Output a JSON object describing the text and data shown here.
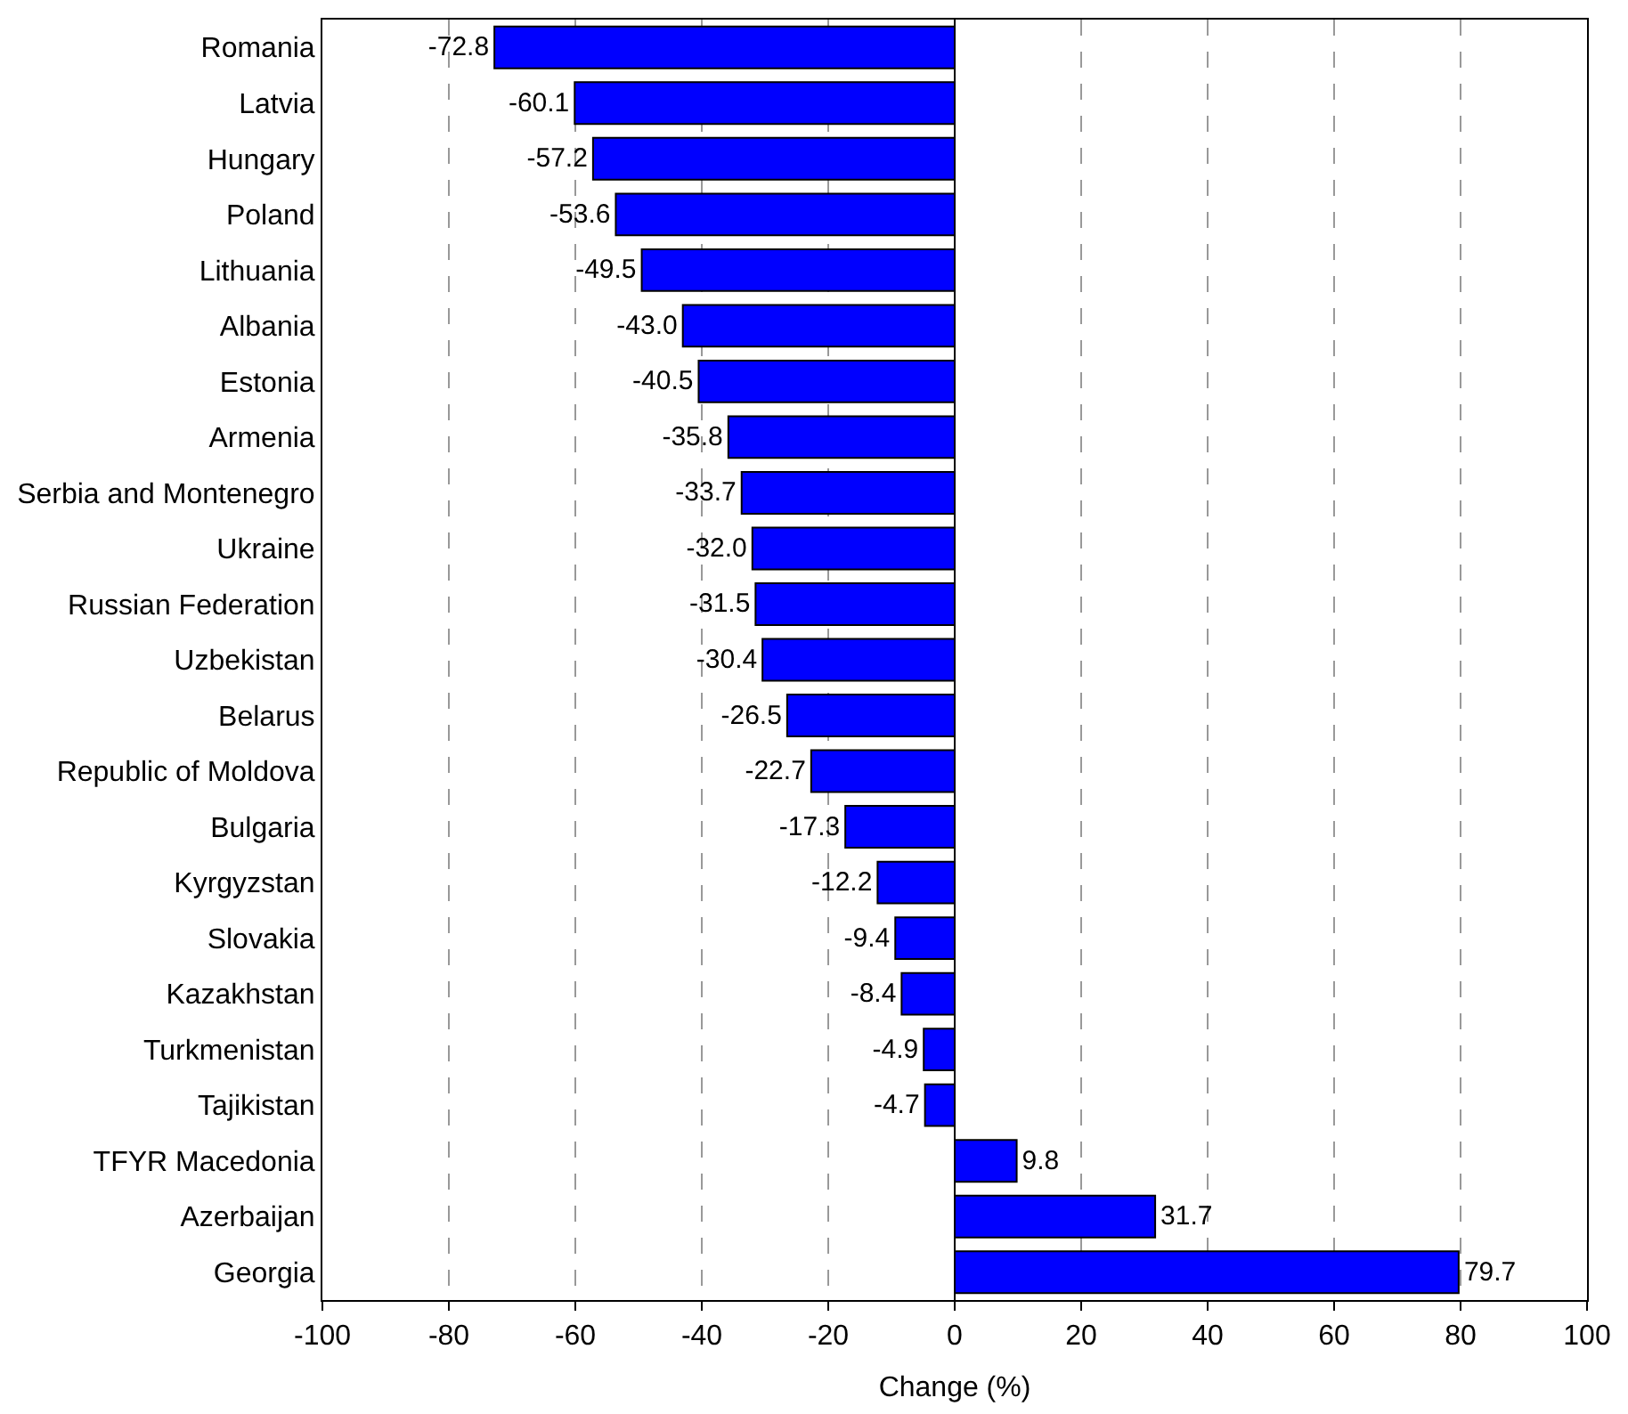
{
  "chart_data": {
    "type": "bar",
    "orientation": "horizontal",
    "xlabel": "Change (%)",
    "categories": [
      "Romania",
      "Latvia",
      "Hungary",
      "Poland",
      "Lithuania",
      "Albania",
      "Estonia",
      "Armenia",
      "Serbia and Montenegro",
      "Ukraine",
      "Russian Federation",
      "Uzbekistan",
      "Belarus",
      "Republic of Moldova",
      "Bulgaria",
      "Kyrgyzstan",
      "Slovakia",
      "Kazakhstan",
      "Turkmenistan",
      "Tajikistan",
      "TFYR Macedonia",
      "Azerbaijan",
      "Georgia"
    ],
    "values": [
      -72.8,
      -60.1,
      -57.2,
      -53.6,
      -49.5,
      -43.0,
      -40.5,
      -35.8,
      -33.7,
      -32.0,
      -31.5,
      -30.4,
      -26.5,
      -22.7,
      -17.3,
      -12.2,
      -9.4,
      -8.4,
      -4.9,
      -4.7,
      9.8,
      31.7,
      79.7
    ],
    "value_labels": [
      "-72.8",
      "-60.1",
      "-57.2",
      "-53.6",
      "-49.5",
      "-43.0",
      "-40.5",
      "-35.8",
      "-33.7",
      "-32.0",
      "-31.5",
      "-30.4",
      "-26.5",
      "-22.7",
      "-17.3",
      "-12.2",
      "-9.4",
      "-8.4",
      "-4.9",
      "-4.7",
      "9.8",
      "31.7",
      "79.7"
    ],
    "color": "#0000ff",
    "xlim": [
      -100,
      100
    ],
    "xticks": [
      -100,
      -80,
      -60,
      -40,
      -20,
      0,
      20,
      40,
      60,
      80,
      100
    ],
    "grid": "x"
  }
}
